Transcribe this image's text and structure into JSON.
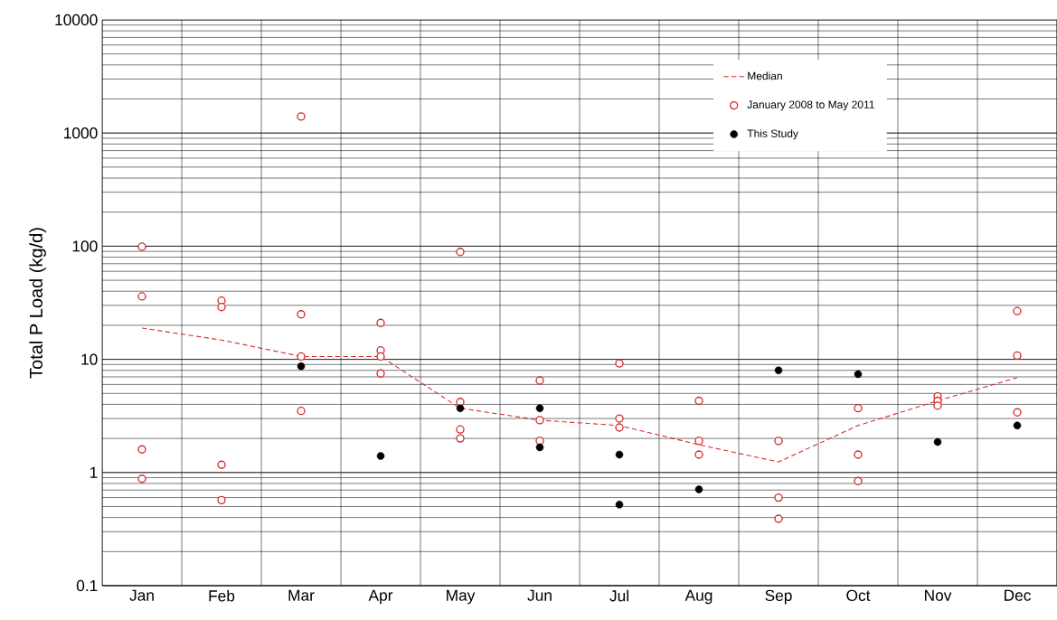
{
  "chart_data": {
    "type": "scatter",
    "ylabel": "Total P Load  (kg/d)",
    "categories": [
      "Jan",
      "Feb",
      "Mar",
      "Apr",
      "May",
      "Jun",
      "Jul",
      "Aug",
      "Sep",
      "Oct",
      "Nov",
      "Dec"
    ],
    "log": "y",
    "ylim": [
      0.1,
      10000
    ],
    "yticks": [
      0.1,
      1,
      10,
      100,
      1000,
      10000
    ],
    "grid": true,
    "legend": "top right",
    "series": [
      {
        "name": "Median",
        "type": "line",
        "line_style": "dashed",
        "marker": "none",
        "color": "#d42a2a",
        "values": [
          18.9,
          14.8,
          10.6,
          10.6,
          3.7,
          2.9,
          2.6,
          1.76,
          1.24,
          2.6,
          4.3,
          6.9
        ]
      },
      {
        "name": "January 2008 to May 2011",
        "marker": "circle",
        "color": "#d42a2a",
        "x": [
          "Jan",
          "Jan",
          "Jan",
          "Jan",
          "Feb",
          "Feb",
          "Feb",
          "Feb",
          "Mar",
          "Mar",
          "Mar",
          "Mar",
          "Apr",
          "Apr",
          "Apr",
          "Apr",
          "May",
          "May",
          "May",
          "May",
          "Jun",
          "Jun",
          "Jun",
          "Jul",
          "Jul",
          "Jul",
          "Aug",
          "Aug",
          "Aug",
          "Sep",
          "Sep",
          "Sep",
          "Oct",
          "Oct",
          "Oct",
          "Nov",
          "Nov",
          "Nov",
          "Dec",
          "Dec",
          "Dec"
        ],
        "values": [
          99,
          36,
          1.6,
          0.88,
          33,
          29,
          1.17,
          0.57,
          1400,
          25,
          10.6,
          3.5,
          21,
          12,
          10.6,
          7.5,
          89,
          4.2,
          2.4,
          2.0,
          6.5,
          2.9,
          1.9,
          9.2,
          3.0,
          2.5,
          4.3,
          1.9,
          1.44,
          1.9,
          0.6,
          0.39,
          3.7,
          1.44,
          0.84,
          4.7,
          4.3,
          3.9,
          26.7,
          10.8,
          3.4
        ]
      },
      {
        "name": "This Study",
        "type": "scatter",
        "marker": "circle_filled",
        "color": "#000000",
        "x": [
          "Mar",
          "Apr",
          "May",
          "Jun",
          "Jun",
          "Jul",
          "Jul",
          "Aug",
          "Sep",
          "Oct",
          "Nov",
          "Dec"
        ],
        "values": [
          8.7,
          1.4,
          3.7,
          3.7,
          1.67,
          1.44,
          0.52,
          0.71,
          8.0,
          7.4,
          1.86,
          2.6
        ]
      }
    ]
  }
}
